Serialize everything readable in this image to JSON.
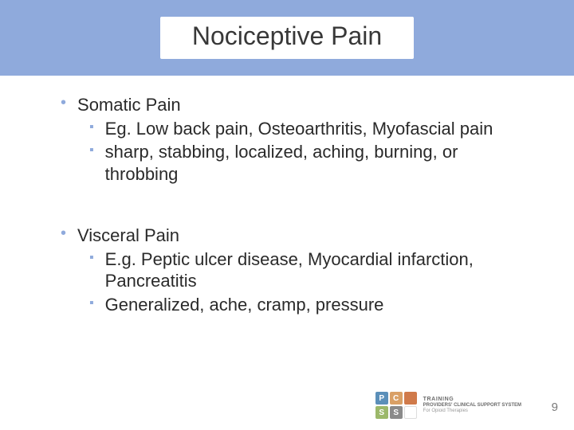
{
  "title": "Nociceptive Pain",
  "title_color": "#383838",
  "title_fontsize": 32,
  "band_color": "#8faadc",
  "body_color": "#2a2a2a",
  "body_fontsize": 22,
  "bullet_color": "#8faadc",
  "sections": [
    {
      "heading": "Somatic Pain",
      "items": [
        "Eg. Low back pain, Osteoarthritis, Myofascial pain",
        "sharp, stabbing, localized, aching, burning, or throbbing"
      ]
    },
    {
      "heading": "Visceral Pain",
      "items": [
        "E.g. Peptic ulcer disease, Myocardial infarction, Pancreatitis",
        "Generalized, ache, cramp, pressure"
      ]
    }
  ],
  "footer": {
    "tiles": [
      {
        "text": "P",
        "bg": "#5b8fb9"
      },
      {
        "text": "C",
        "bg": "#d9a066"
      },
      {
        "text": "",
        "bg": "#d07a4a"
      },
      {
        "text": "S",
        "bg": "#9cb86a"
      },
      {
        "text": "S",
        "bg": "#8a8a8a"
      },
      {
        "text": "",
        "bg": "#ffffff"
      }
    ],
    "line1": "TRAINING",
    "line2": "PROVIDERS' CLINICAL SUPPORT SYSTEM",
    "line3": "For Opioid Therapies"
  },
  "page_number": "9",
  "background_color": "#ffffff"
}
